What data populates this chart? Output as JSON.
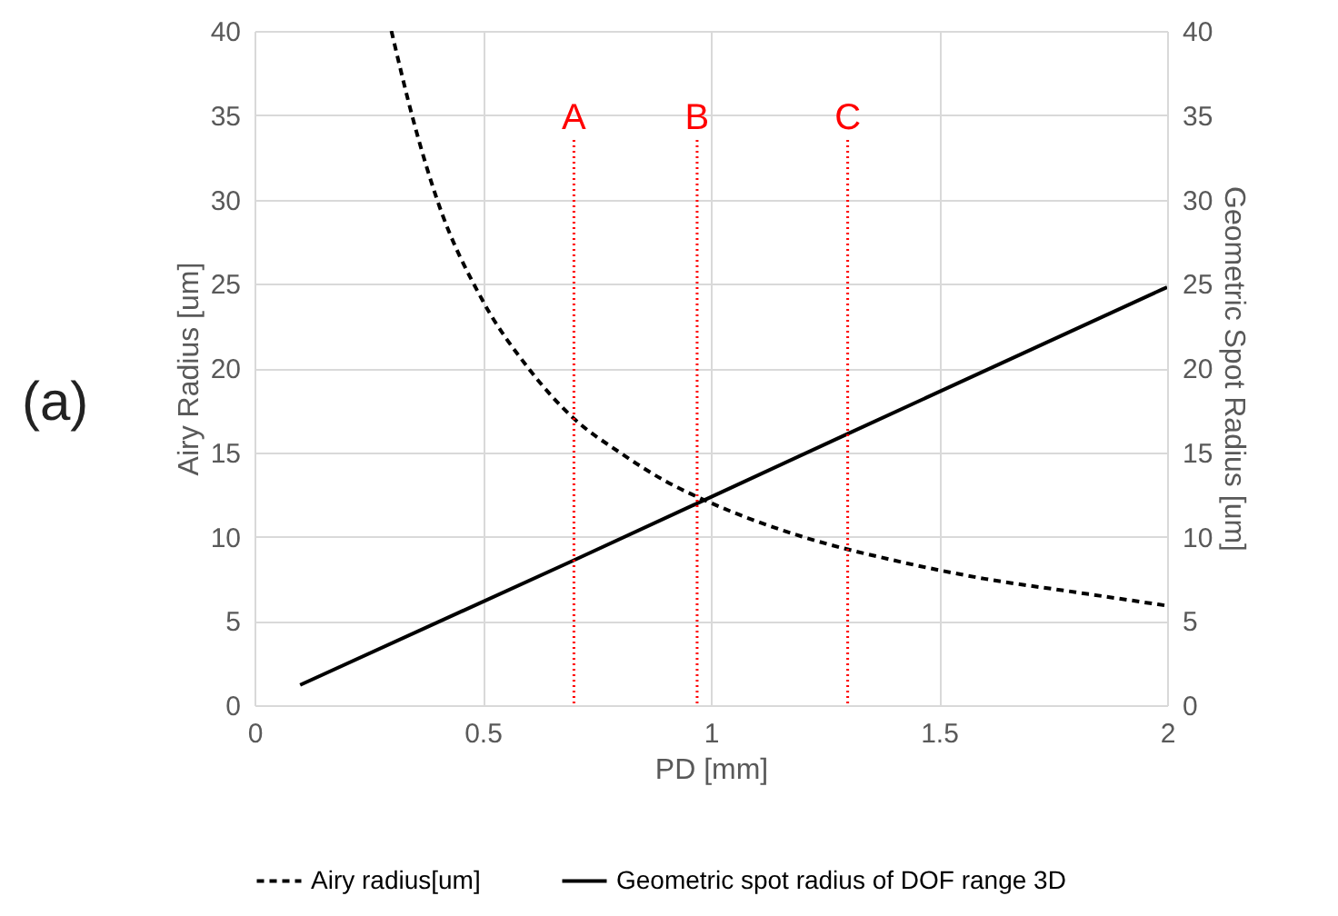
{
  "chart_data": {
    "type": "line",
    "xlabel": "PD [mm]",
    "ylabel": "Airy Radius  [um]",
    "y2label": "Geometric Spot Radius [um]",
    "xlim": [
      0,
      2
    ],
    "xticks": [
      0,
      0.5,
      1,
      1.5,
      2
    ],
    "ylim": [
      0,
      40
    ],
    "yticks": [
      0,
      5,
      10,
      15,
      20,
      25,
      30,
      35,
      40
    ],
    "y2lim": [
      0,
      40
    ],
    "y2ticks": [
      0,
      5,
      10,
      15,
      20,
      25,
      30,
      35,
      40
    ],
    "grid": true,
    "legend": "bottom",
    "annotations": [
      "(a)"
    ],
    "series": [
      {
        "name": "Airy radius[um]",
        "color": "#000000",
        "line_style": "dashed",
        "x": [
          0.3,
          0.35,
          0.4,
          0.5,
          0.6,
          0.7,
          0.8,
          0.9,
          1.0,
          1.2,
          1.4,
          1.6,
          1.8,
          2.0
        ],
        "values": [
          40,
          34.5,
          30,
          24,
          20,
          17,
          15,
          13.3,
          12,
          10,
          8.6,
          7.5,
          6.7,
          5.9
        ]
      },
      {
        "name": "Geometric spot radius of DOF range 3D",
        "color": "#000000",
        "line_style": "solid",
        "axis": "y2",
        "x": [
          0.1,
          0.7,
          1.3,
          2.0
        ],
        "values": [
          1.2,
          8.6,
          16.1,
          24.8
        ]
      }
    ],
    "ref_lines": [
      {
        "axis": "x",
        "value": 0.7,
        "label": "A",
        "color": "#ff0000",
        "line_style": "dotted"
      },
      {
        "axis": "x",
        "value": 0.97,
        "label": "B",
        "color": "#ff0000",
        "line_style": "dotted"
      },
      {
        "axis": "x",
        "value": 1.3,
        "label": "C",
        "color": "#ff0000",
        "line_style": "dotted"
      }
    ]
  }
}
